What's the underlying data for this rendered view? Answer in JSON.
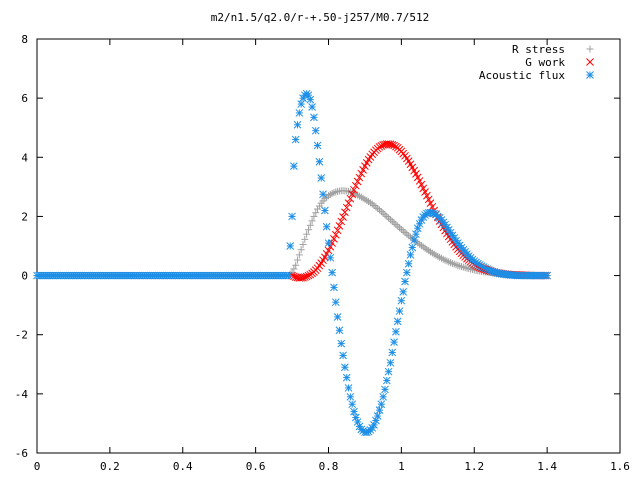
{
  "chart_data": {
    "type": "scatter",
    "title": "m2/n1.5/q2.0/r-+.50-j257/M0.7/512",
    "xlabel": "",
    "ylabel": "",
    "xlim": [
      0,
      1.6
    ],
    "ylim": [
      -6,
      8
    ],
    "xticks": [
      0,
      0.2,
      0.4,
      0.6,
      0.8,
      1,
      1.2,
      1.4,
      1.6
    ],
    "xtick_labels": [
      "0",
      "0.2",
      "0.4",
      "0.6",
      "0.8",
      "1",
      "1.2",
      "1.4",
      "1.6"
    ],
    "yticks": [
      -6,
      -4,
      -2,
      0,
      2,
      4,
      6,
      8
    ],
    "ytick_labels": [
      "-6",
      "-4",
      "-2",
      "0",
      "2",
      "4",
      "6",
      "8"
    ],
    "grid": false,
    "legend_position": "top-right",
    "series": [
      {
        "name": "R stress",
        "marker": "plus",
        "color": "#a0a0a0",
        "x": [
          0.0,
          0.1,
          0.2,
          0.3,
          0.4,
          0.5,
          0.6,
          0.69,
          0.7,
          0.71,
          0.72,
          0.73,
          0.74,
          0.75,
          0.76,
          0.77,
          0.78,
          0.79,
          0.8,
          0.81,
          0.82,
          0.83,
          0.84,
          0.85,
          0.86,
          0.87,
          0.88,
          0.9,
          0.92,
          0.94,
          0.96,
          0.98,
          1.0,
          1.02,
          1.04,
          1.06,
          1.08,
          1.1,
          1.12,
          1.14,
          1.16,
          1.18,
          1.2,
          1.22,
          1.24,
          1.26,
          1.28,
          1.3,
          1.32,
          1.34,
          1.36,
          1.38,
          1.4
        ],
        "y": [
          0.0,
          0.0,
          0.0,
          0.0,
          0.0,
          0.0,
          0.0,
          0.0,
          0.1,
          0.35,
          0.7,
          1.05,
          1.4,
          1.7,
          2.0,
          2.25,
          2.45,
          2.6,
          2.7,
          2.78,
          2.83,
          2.86,
          2.87,
          2.86,
          2.83,
          2.78,
          2.72,
          2.58,
          2.42,
          2.22,
          2.0,
          1.78,
          1.56,
          1.35,
          1.15,
          0.97,
          0.8,
          0.65,
          0.52,
          0.41,
          0.32,
          0.25,
          0.19,
          0.14,
          0.11,
          0.08,
          0.06,
          0.04,
          0.03,
          0.02,
          0.01,
          0.0,
          0.0
        ]
      },
      {
        "name": "G work",
        "marker": "cross",
        "color": "#ff0000",
        "x": [
          0.7,
          0.71,
          0.72,
          0.73,
          0.74,
          0.75,
          0.76,
          0.77,
          0.78,
          0.79,
          0.8,
          0.81,
          0.82,
          0.83,
          0.84,
          0.85,
          0.86,
          0.87,
          0.88,
          0.89,
          0.9,
          0.91,
          0.92,
          0.93,
          0.94,
          0.95,
          0.96,
          0.97,
          0.98,
          0.99,
          1.0,
          1.01,
          1.02,
          1.03,
          1.04,
          1.05,
          1.06,
          1.07,
          1.08,
          1.09,
          1.1,
          1.11,
          1.12,
          1.13,
          1.14,
          1.15,
          1.16,
          1.17,
          1.18,
          1.19,
          1.2,
          1.22,
          1.24,
          1.26,
          1.28,
          1.3,
          1.32,
          1.34,
          1.36,
          1.38,
          1.4
        ],
        "y": [
          0.0,
          -0.05,
          -0.08,
          -0.07,
          -0.03,
          0.03,
          0.12,
          0.25,
          0.42,
          0.62,
          0.85,
          1.1,
          1.38,
          1.68,
          1.98,
          2.3,
          2.6,
          2.9,
          3.18,
          3.45,
          3.7,
          3.92,
          4.1,
          4.24,
          4.35,
          4.42,
          4.45,
          4.44,
          4.4,
          4.32,
          4.2,
          4.05,
          3.87,
          3.66,
          3.44,
          3.2,
          2.95,
          2.7,
          2.45,
          2.2,
          1.96,
          1.73,
          1.52,
          1.32,
          1.14,
          0.97,
          0.82,
          0.69,
          0.57,
          0.47,
          0.38,
          0.25,
          0.16,
          0.1,
          0.06,
          0.03,
          0.02,
          0.01,
          0.0,
          0.0,
          0.0
        ]
      },
      {
        "name": "Acoustic flux",
        "marker": "star",
        "color": "#1e8fe6",
        "x": [
          0.0,
          0.05,
          0.1,
          0.15,
          0.2,
          0.25,
          0.3,
          0.35,
          0.4,
          0.45,
          0.5,
          0.55,
          0.6,
          0.65,
          0.69,
          0.7,
          0.705,
          0.71,
          0.715,
          0.72,
          0.725,
          0.73,
          0.735,
          0.74,
          0.745,
          0.75,
          0.755,
          0.76,
          0.765,
          0.77,
          0.775,
          0.78,
          0.785,
          0.79,
          0.795,
          0.8,
          0.805,
          0.81,
          0.815,
          0.82,
          0.825,
          0.83,
          0.835,
          0.84,
          0.845,
          0.85,
          0.855,
          0.86,
          0.865,
          0.87,
          0.875,
          0.88,
          0.885,
          0.89,
          0.895,
          0.9,
          0.905,
          0.91,
          0.915,
          0.92,
          0.925,
          0.93,
          0.935,
          0.94,
          0.945,
          0.95,
          0.955,
          0.96,
          0.965,
          0.97,
          0.975,
          0.98,
          0.985,
          0.99,
          0.995,
          1.0,
          1.005,
          1.01,
          1.015,
          1.02,
          1.025,
          1.03,
          1.035,
          1.04,
          1.045,
          1.05,
          1.055,
          1.06,
          1.065,
          1.07,
          1.075,
          1.08,
          1.085,
          1.09,
          1.095,
          1.1,
          1.105,
          1.11,
          1.115,
          1.12,
          1.125,
          1.13,
          1.135,
          1.14,
          1.145,
          1.15,
          1.155,
          1.16,
          1.165,
          1.17,
          1.175,
          1.18,
          1.185,
          1.19,
          1.195,
          1.2,
          1.21,
          1.22,
          1.23,
          1.24,
          1.25,
          1.26,
          1.27,
          1.28,
          1.29,
          1.3,
          1.31,
          1.32,
          1.33,
          1.34,
          1.35,
          1.36,
          1.37,
          1.38,
          1.39,
          1.4
        ],
        "y": [
          0.0,
          0.0,
          0.0,
          0.0,
          0.0,
          0.0,
          0.0,
          0.0,
          0.0,
          0.0,
          0.0,
          0.0,
          0.0,
          0.0,
          0.0,
          2.0,
          3.7,
          4.6,
          5.1,
          5.5,
          5.8,
          6.0,
          6.1,
          6.15,
          6.1,
          5.95,
          5.7,
          5.35,
          4.9,
          4.4,
          3.85,
          3.3,
          2.75,
          2.2,
          1.65,
          1.1,
          0.6,
          0.1,
          -0.4,
          -0.9,
          -1.4,
          -1.85,
          -2.3,
          -2.7,
          -3.1,
          -3.45,
          -3.8,
          -4.1,
          -4.35,
          -4.6,
          -4.8,
          -4.95,
          -5.1,
          -5.2,
          -5.25,
          -5.3,
          -5.3,
          -5.28,
          -5.22,
          -5.15,
          -5.05,
          -4.9,
          -4.75,
          -4.55,
          -4.35,
          -4.1,
          -3.85,
          -3.55,
          -3.25,
          -2.95,
          -2.6,
          -2.25,
          -1.9,
          -1.55,
          -1.2,
          -0.85,
          -0.55,
          -0.2,
          0.1,
          0.4,
          0.7,
          0.95,
          1.2,
          1.4,
          1.6,
          1.75,
          1.88,
          1.98,
          2.05,
          2.1,
          2.12,
          2.13,
          2.12,
          2.1,
          2.06,
          2.0,
          1.95,
          1.88,
          1.8,
          1.72,
          1.63,
          1.54,
          1.45,
          1.36,
          1.27,
          1.18,
          1.1,
          1.02,
          0.94,
          0.87,
          0.8,
          0.73,
          0.66,
          0.6,
          0.54,
          0.49,
          0.4,
          0.32,
          0.25,
          0.19,
          0.14,
          0.1,
          0.07,
          0.05,
          0.03,
          0.02,
          0.01,
          0.0,
          0.0,
          0.0,
          0.0,
          0.0,
          0.0,
          0.0,
          0.0,
          0.0
        ]
      }
    ]
  }
}
